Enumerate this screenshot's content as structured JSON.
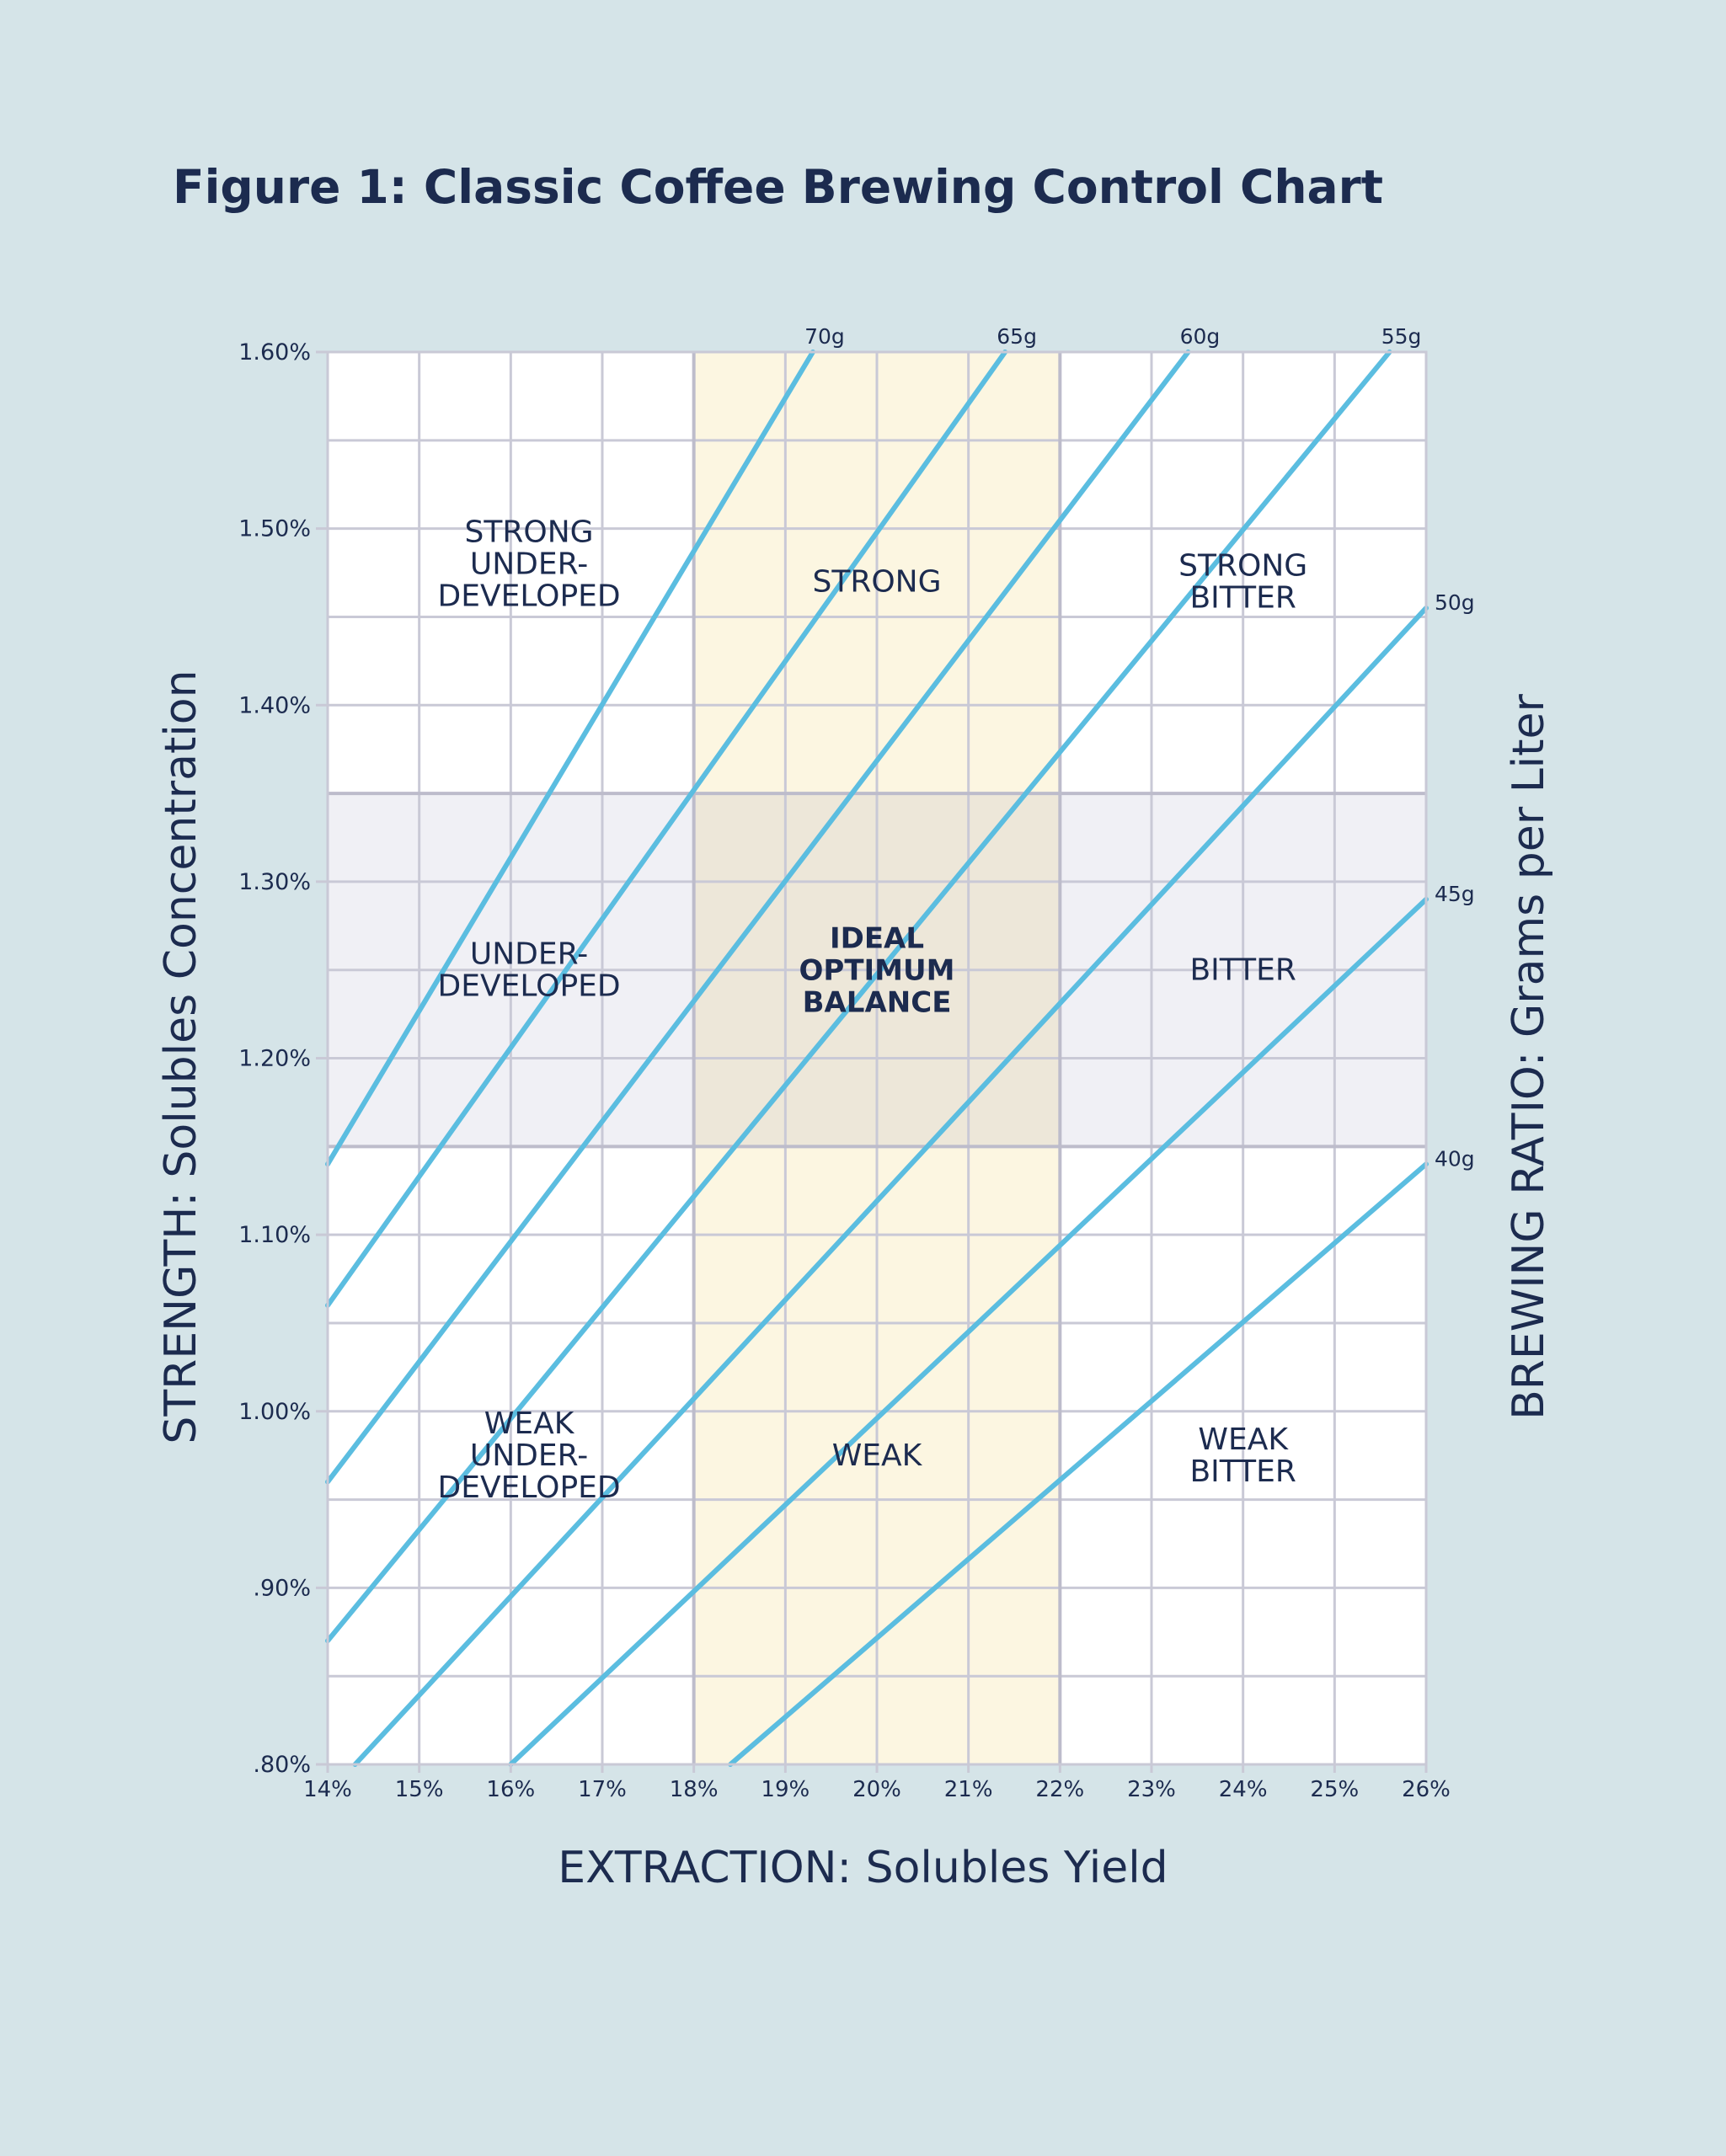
{
  "title": "Figure 1: Classic Coffee Brewing Control Chart",
  "chart_data": {
    "type": "line",
    "title": "Figure 1: Classic Coffee Brewing Control Chart",
    "xlabel": "EXTRACTION: Solubles Yield",
    "ylabel": "STRENGTH: Solubles Concentration",
    "y2label": "BREWING RATIO: Grams per Liter",
    "xlim": [
      14,
      26
    ],
    "ylim": [
      0.8,
      1.6
    ],
    "x_ticks": [
      {
        "value": 14,
        "label": "14%"
      },
      {
        "value": 15,
        "label": "15%"
      },
      {
        "value": 16,
        "label": "16%"
      },
      {
        "value": 17,
        "label": "17%"
      },
      {
        "value": 18,
        "label": "18%"
      },
      {
        "value": 19,
        "label": "19%"
      },
      {
        "value": 20,
        "label": "20%"
      },
      {
        "value": 21,
        "label": "21%"
      },
      {
        "value": 22,
        "label": "22%"
      },
      {
        "value": 23,
        "label": "23%"
      },
      {
        "value": 24,
        "label": "24%"
      },
      {
        "value": 25,
        "label": "25%"
      },
      {
        "value": 26,
        "label": "26%"
      }
    ],
    "y_ticks": [
      {
        "value": 0.8,
        "label": ".80%"
      },
      {
        "value": 0.9,
        "label": ".90%"
      },
      {
        "value": 1.0,
        "label": "1.00%"
      },
      {
        "value": 1.1,
        "label": "1.10%"
      },
      {
        "value": 1.2,
        "label": "1.20%"
      },
      {
        "value": 1.3,
        "label": "1.30%"
      },
      {
        "value": 1.4,
        "label": "1.40%"
      },
      {
        "value": 1.5,
        "label": "1.50%"
      },
      {
        "value": 1.6,
        "label": "1.60%"
      }
    ],
    "grid": true,
    "ideal_extraction": [
      18,
      22
    ],
    "ideal_strength": [
      1.15,
      1.35
    ],
    "series": [
      {
        "name": "70g",
        "label": "70g",
        "points": [
          [
            14,
            1.14
          ],
          [
            19.3,
            1.6
          ]
        ]
      },
      {
        "name": "65g",
        "label": "65g",
        "points": [
          [
            14,
            1.06
          ],
          [
            21.4,
            1.6
          ]
        ]
      },
      {
        "name": "60g",
        "label": "60g",
        "points": [
          [
            14,
            0.96
          ],
          [
            23.4,
            1.6
          ]
        ]
      },
      {
        "name": "55g",
        "label": "55g",
        "points": [
          [
            14,
            0.87
          ],
          [
            25.6,
            1.6
          ]
        ]
      },
      {
        "name": "50g",
        "label": "50g",
        "points": [
          [
            14.3,
            0.8
          ],
          [
            26,
            1.455
          ]
        ]
      },
      {
        "name": "45g",
        "label": "45g",
        "points": [
          [
            16,
            0.8
          ],
          [
            26,
            1.29
          ]
        ]
      },
      {
        "name": "40g",
        "label": "40g",
        "points": [
          [
            18.4,
            0.8
          ],
          [
            26,
            1.14
          ]
        ]
      }
    ],
    "regions": [
      {
        "name": "strong-underdeveloped",
        "lines": [
          "STRONG",
          "UNDER-",
          "DEVELOPED"
        ],
        "x": 16.2,
        "y": 1.48,
        "bold": false
      },
      {
        "name": "strong",
        "lines": [
          "STRONG"
        ],
        "x": 20,
        "y": 1.47,
        "bold": false
      },
      {
        "name": "strong-bitter",
        "lines": [
          "STRONG",
          "BITTER"
        ],
        "x": 24,
        "y": 1.47,
        "bold": false
      },
      {
        "name": "underdeveloped",
        "lines": [
          "UNDER-",
          "DEVELOPED"
        ],
        "x": 16.2,
        "y": 1.25,
        "bold": false
      },
      {
        "name": "ideal-optimum-balance",
        "lines": [
          "IDEAL",
          "OPTIMUM",
          "BALANCE"
        ],
        "x": 20,
        "y": 1.25,
        "bold": true
      },
      {
        "name": "bitter",
        "lines": [
          "BITTER"
        ],
        "x": 24,
        "y": 1.25,
        "bold": false
      },
      {
        "name": "weak-underdeveloped",
        "lines": [
          "WEAK",
          "UNDER-",
          "DEVELOPED"
        ],
        "x": 16.2,
        "y": 0.975,
        "bold": false
      },
      {
        "name": "weak",
        "lines": [
          "WEAK"
        ],
        "x": 20,
        "y": 0.975,
        "bold": false
      },
      {
        "name": "weak-bitter",
        "lines": [
          "WEAK",
          "BITTER"
        ],
        "x": 24,
        "y": 0.975,
        "bold": false
      }
    ]
  },
  "colors": {
    "background": "#d5e4e8",
    "plot": "#ffffff",
    "grid": "#c9c9d6",
    "ideal_band": "#fcf6e1",
    "strength_band": "#f0f0f5",
    "overlap": "#ede7d9",
    "line": "#5bbde0",
    "text": "#1c2b4f"
  }
}
